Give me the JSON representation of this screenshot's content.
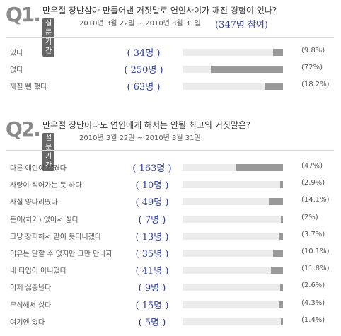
{
  "chart_data": [
    {
      "type": "bar",
      "question_no": "Q1.",
      "title": "만우절 장난삼아 만들어낸 거짓말로 연인사이가 깨진 경험이 있나?",
      "period_label": "설문기간",
      "period": "2010년 3월 22일 ~ 2010년 3월 31일",
      "participants": "(347명 참여)",
      "categories": [
        "있다",
        "없다",
        "깨질 뻔 했다"
      ],
      "counts_text": [
        "34명",
        "250명",
        "63명"
      ],
      "values": [
        9.8,
        72,
        18.2
      ],
      "percent_text": [
        "(9.8%)",
        "(72%)",
        "(18.2%)"
      ]
    },
    {
      "type": "bar",
      "question_no": "Q2.",
      "title": "만우절 장난이라도 연인에게 해서는 안될 최고의 거짓말은?",
      "period_label": "설문기간",
      "period": "2010년 3월 22일 ~ 2010년 3월 31일",
      "categories": [
        "다른 애인이 생겼다",
        "사랑이 식어가는 듯 하다",
        "사실 양다리였다",
        "돈이(차가) 없어서 싫다",
        "그냥 창피해서 같이 못다니겠다",
        "이유는 말할 수 없지만 그만 만나자",
        "내 타입이 아니었다",
        "이제 싫증난다",
        "무식해서 싫다",
        "여기엔 없다"
      ],
      "counts_text": [
        "163명",
        "10명",
        "49명",
        "7명",
        "13명",
        "35명",
        "41명",
        "9명",
        "15명",
        "5명"
      ],
      "values": [
        47,
        2.9,
        14.1,
        2,
        3.7,
        10.1,
        11.8,
        2.6,
        4.3,
        1.4
      ],
      "percent_text": [
        "(47%)",
        "(2.9%)",
        "(14.1%)",
        "(2%)",
        "(3.7%)",
        "(10.1%)",
        "(11.8%)",
        "(2.6%)",
        "(4.3%)",
        "(1.4%)"
      ]
    }
  ],
  "colors": {
    "bar": "#999999",
    "track": "#ececec",
    "count": "#2f3f9a"
  }
}
